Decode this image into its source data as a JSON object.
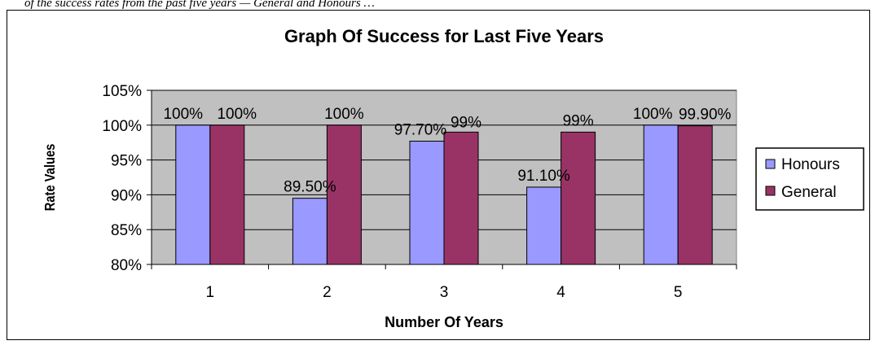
{
  "caption": "of the success rates from the past five years — General and Honours …",
  "chart_data": {
    "type": "bar",
    "title": "Graph Of Success for Last Five Years",
    "xlabel": "Number Of Years",
    "ylabel": "Rate Values",
    "categories": [
      "1",
      "2",
      "3",
      "4",
      "5"
    ],
    "ylim": [
      80,
      105
    ],
    "yticks": [
      "80%",
      "85%",
      "90%",
      "95%",
      "100%",
      "105%"
    ],
    "grid": true,
    "legend_position": "right",
    "series": [
      {
        "name": "Honours",
        "color": "#9999ff",
        "values": [
          100,
          89.5,
          97.7,
          91.1,
          100
        ],
        "labels": [
          "100%",
          "89.50%",
          "97.70%",
          "91.10%",
          "100%"
        ]
      },
      {
        "name": "General",
        "color": "#993366",
        "values": [
          100,
          100,
          99,
          99,
          99.9
        ],
        "labels": [
          "100%",
          "100%",
          "99%",
          "99%",
          "99.90%"
        ]
      }
    ],
    "plot_background": "#c0c0c0"
  }
}
